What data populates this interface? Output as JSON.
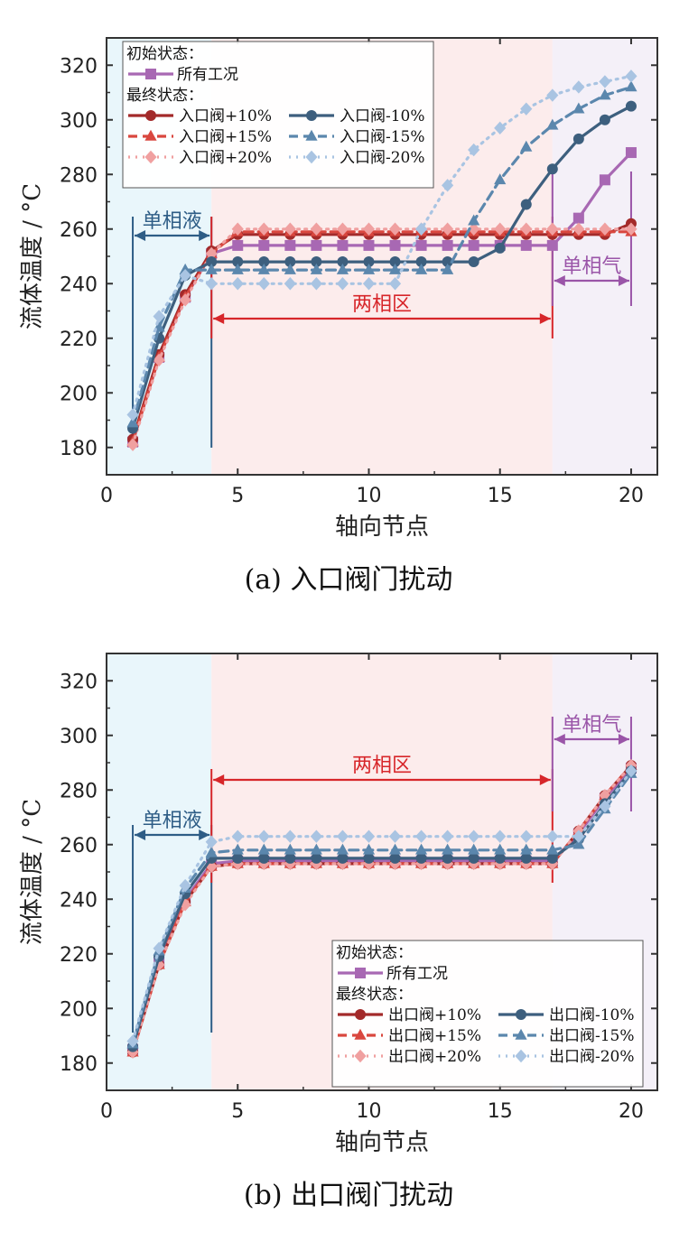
{
  "colors": {
    "in10": "#a32a2a",
    "in15": "#d9473f",
    "in20": "#f0a0a0",
    "out_m10": "#3d5f7e",
    "out_m15": "#5b87ad",
    "out_m20": "#a9c4e2",
    "initial": "#a868b3",
    "region_liquid": "#e9f6fb",
    "region_two": "#fcecec",
    "region_gas": "#f4f0f8",
    "ann_liquid": "#2e5d86",
    "ann_two": "#d7262a",
    "ann_gas": "#9a55a8"
  },
  "chart_data": [
    {
      "type": "line",
      "panel": "a",
      "caption": "(a) 入口阀门扰动",
      "xlabel": "轴向节点",
      "ylabel": "流体温度 / °C",
      "xlim": [
        0,
        21
      ],
      "ylim": [
        170,
        330
      ],
      "xticks": [
        "0",
        "5",
        "10",
        "15",
        "20"
      ],
      "yticks": [
        "180",
        "200",
        "220",
        "240",
        "260",
        "280",
        "300",
        "320"
      ],
      "regions": [
        {
          "label": "单相液",
          "from": 0,
          "to": 4
        },
        {
          "label": "两相区",
          "from": 4,
          "to": 17
        },
        {
          "label": "单相气",
          "from": 17,
          "to": 21
        }
      ],
      "legend_position": "top-left",
      "legend": {
        "initial_header": "初始状态：",
        "initial_item": "所有工况",
        "final_header": "最终状态：",
        "items": [
          "入口阀+10%",
          "入口阀-10%",
          "入口阀+15%",
          "入口阀-15%",
          "入口阀+20%",
          "入口阀-20%"
        ]
      },
      "x": [
        1,
        2,
        3,
        4,
        5,
        6,
        7,
        8,
        9,
        10,
        11,
        12,
        13,
        14,
        15,
        16,
        17,
        18,
        19,
        20
      ],
      "series": [
        {
          "name": "所有工况",
          "group": "initial",
          "marker": "square",
          "values": [
            182,
            213,
            235,
            251,
            254,
            254,
            254,
            254,
            254,
            254,
            254,
            254,
            254,
            254,
            254,
            254,
            254,
            264,
            278,
            288
          ]
        },
        {
          "name": "入口阀+10%",
          "group": "final",
          "marker": "circle",
          "values": [
            183,
            214,
            236,
            252,
            258,
            258,
            258,
            258,
            258,
            258,
            258,
            258,
            258,
            258,
            258,
            258,
            258,
            258,
            258,
            262
          ]
        },
        {
          "name": "入口阀+15%",
          "group": "final",
          "marker": "triangle",
          "values": [
            182,
            213,
            235,
            251,
            259,
            259,
            259,
            259,
            259,
            259,
            259,
            259,
            259,
            259,
            259,
            259,
            259,
            259,
            259,
            259
          ]
        },
        {
          "name": "入口阀+20%",
          "group": "final",
          "marker": "diamond",
          "values": [
            181,
            212,
            234,
            251,
            260,
            260,
            260,
            260,
            260,
            260,
            260,
            260,
            260,
            260,
            260,
            260,
            260,
            260,
            260,
            260
          ]
        },
        {
          "name": "入口阀-10%",
          "group": "final",
          "marker": "circle",
          "values": [
            187,
            220,
            243,
            248,
            248,
            248,
            248,
            248,
            248,
            248,
            248,
            248,
            248,
            248,
            253,
            269,
            282,
            293,
            300,
            305
          ]
        },
        {
          "name": "入口阀-15%",
          "group": "final",
          "marker": "triangle",
          "values": [
            189,
            224,
            245,
            245,
            245,
            245,
            245,
            245,
            245,
            245,
            245,
            245,
            245,
            263,
            278,
            290,
            298,
            304,
            309,
            312
          ]
        },
        {
          "name": "入口阀-20%",
          "group": "final",
          "marker": "diamond",
          "values": [
            192,
            228,
            243,
            240,
            240,
            240,
            240,
            240,
            240,
            240,
            240,
            260,
            276,
            289,
            297,
            304,
            309,
            312,
            314,
            316
          ]
        }
      ]
    },
    {
      "type": "line",
      "panel": "b",
      "caption": "(b) 出口阀门扰动",
      "xlabel": "轴向节点",
      "ylabel": "流体温度 / °C",
      "xlim": [
        0,
        21
      ],
      "ylim": [
        170,
        330
      ],
      "xticks": [
        "0",
        "5",
        "10",
        "15",
        "20"
      ],
      "yticks": [
        "180",
        "200",
        "220",
        "240",
        "260",
        "280",
        "300",
        "320"
      ],
      "regions": [
        {
          "label": "单相液",
          "from": 0,
          "to": 4
        },
        {
          "label": "两相区",
          "from": 4,
          "to": 17
        },
        {
          "label": "单相气",
          "from": 17,
          "to": 21
        }
      ],
      "legend_position": "bottom-right",
      "legend": {
        "initial_header": "初始状态：",
        "initial_item": "所有工况",
        "final_header": "最终状态：",
        "items": [
          "出口阀+10%",
          "出口阀-10%",
          "出口阀+15%",
          "出口阀-15%",
          "出口阀+20%",
          "出口阀-20%"
        ]
      },
      "x": [
        1,
        2,
        3,
        4,
        5,
        6,
        7,
        8,
        9,
        10,
        11,
        12,
        13,
        14,
        15,
        16,
        17,
        18,
        19,
        20
      ],
      "series": [
        {
          "name": "所有工况",
          "group": "initial",
          "marker": "square",
          "values": [
            185,
            217,
            240,
            253,
            254,
            254,
            254,
            254,
            254,
            254,
            254,
            254,
            254,
            254,
            254,
            254,
            254,
            264,
            277,
            288
          ]
        },
        {
          "name": "出口阀+10%",
          "group": "final",
          "marker": "circle",
          "values": [
            184,
            216,
            239,
            252,
            253,
            253,
            253,
            253,
            253,
            253,
            253,
            253,
            253,
            253,
            253,
            253,
            253,
            265,
            278,
            289
          ]
        },
        {
          "name": "出口阀+15%",
          "group": "final",
          "marker": "triangle",
          "values": [
            184,
            216,
            239,
            252,
            253,
            253,
            253,
            253,
            253,
            253,
            253,
            253,
            253,
            253,
            253,
            253,
            253,
            265,
            278,
            289
          ]
        },
        {
          "name": "出口阀+20%",
          "group": "final",
          "marker": "diamond",
          "values": [
            184,
            216,
            238,
            252,
            253,
            253,
            253,
            253,
            253,
            253,
            253,
            253,
            253,
            253,
            253,
            253,
            253,
            265,
            278,
            289
          ]
        },
        {
          "name": "出口阀-10%",
          "group": "final",
          "marker": "circle",
          "values": [
            186,
            219,
            242,
            255,
            255,
            255,
            255,
            255,
            255,
            255,
            255,
            255,
            255,
            255,
            255,
            255,
            255,
            262,
            275,
            287
          ]
        },
        {
          "name": "出口阀-15%",
          "group": "final",
          "marker": "triangle",
          "values": [
            187,
            221,
            244,
            257,
            258,
            258,
            258,
            258,
            258,
            258,
            258,
            258,
            258,
            258,
            258,
            258,
            258,
            260,
            273,
            286
          ]
        },
        {
          "name": "出口阀-20%",
          "group": "final",
          "marker": "diamond",
          "values": [
            188,
            222,
            245,
            261,
            263,
            263,
            263,
            263,
            263,
            263,
            263,
            263,
            263,
            263,
            263,
            263,
            263,
            263,
            274,
            287
          ]
        }
      ]
    }
  ]
}
